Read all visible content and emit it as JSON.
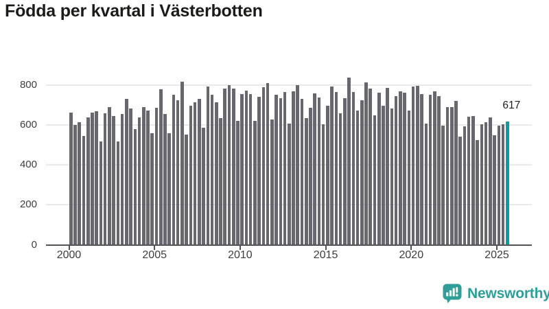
{
  "title": "Födda per kvartal i Västerbotten",
  "colors": {
    "bar": "#68676d",
    "highlight": "#0d9b9b",
    "grid": "#e9e9e9",
    "axis": "#55535a",
    "title_text": "#1b1b19",
    "tick_text": "#3d3d3d",
    "brand": "#2f9d98"
  },
  "chart_data": {
    "type": "bar",
    "title": "Födda per kvartal i Västerbotten",
    "start_period": "2000 Q1",
    "end_period": "2025 Q3",
    "periodicity": "quarterly",
    "values": [
      661,
      599,
      614,
      545,
      636,
      662,
      667,
      517,
      659,
      689,
      644,
      516,
      655,
      731,
      680,
      579,
      638,
      689,
      670,
      559,
      686,
      777,
      655,
      559,
      751,
      723,
      817,
      550,
      695,
      712,
      731,
      584,
      791,
      749,
      712,
      635,
      782,
      797,
      780,
      619,
      755,
      772,
      755,
      621,
      740,
      789,
      810,
      625,
      750,
      734,
      763,
      607,
      766,
      799,
      729,
      633,
      686,
      756,
      738,
      604,
      695,
      791,
      765,
      656,
      734,
      836,
      765,
      670,
      723,
      812,
      780,
      647,
      760,
      695,
      785,
      681,
      743,
      769,
      760,
      670,
      791,
      794,
      755,
      607,
      750,
      769,
      742,
      595,
      689,
      690,
      718,
      542,
      593,
      641,
      644,
      525,
      602,
      614,
      638,
      548,
      595,
      602,
      617
    ],
    "highlight_index": 102,
    "highlight_label": "617",
    "xticks": [
      2000,
      2005,
      2010,
      2015,
      2020,
      2025
    ],
    "yticks": [
      0,
      200,
      400,
      600,
      800
    ],
    "ylim": [
      0,
      868
    ],
    "grid": "horizontal",
    "legend": false
  },
  "brand": {
    "name": "Newsworthy",
    "icon": "newsworthy-speech-bubble-chart-icon"
  }
}
